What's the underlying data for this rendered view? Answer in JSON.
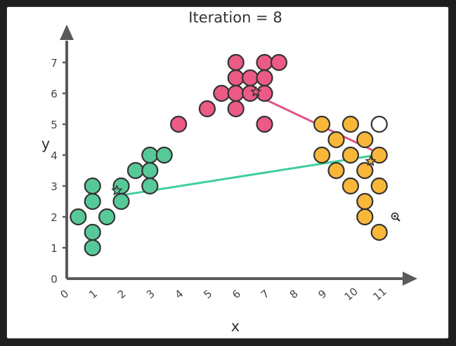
{
  "chart_data": {
    "type": "scatter",
    "title": "Iteration = 8",
    "xlabel": "x",
    "ylabel": "y",
    "xlim": [
      0,
      11
    ],
    "ylim": [
      0,
      7
    ],
    "x_ticks": [
      "0",
      "1",
      "2",
      "3",
      "4",
      "5",
      "6",
      "7",
      "8",
      "9",
      "10",
      "11"
    ],
    "y_ticks": [
      "0",
      "1",
      "2",
      "3",
      "4",
      "5",
      "6",
      "7"
    ],
    "grid": false,
    "colors": {
      "green": "#57c998",
      "pink": "#ec5a86",
      "orange": "#f9b73a",
      "outline": "#333333",
      "axis": "#5a5a5a",
      "green_line": "#3fcf98",
      "pink_line": "#e05183",
      "empty": "#ffffff"
    },
    "series": [
      {
        "color": "#57c998",
        "points": [
          [
            0.4,
            2
          ],
          [
            0.9,
            3
          ],
          [
            0.9,
            2.5
          ],
          [
            0.9,
            1.5
          ],
          [
            0.9,
            1
          ],
          [
            1.4,
            2
          ],
          [
            1.9,
            3
          ],
          [
            1.9,
            2.5
          ],
          [
            2.4,
            3.5
          ],
          [
            2.9,
            4
          ],
          [
            2.9,
            3.5
          ],
          [
            2.9,
            3
          ],
          [
            3.4,
            4
          ]
        ]
      },
      {
        "color": "#ec5a86",
        "points": [
          [
            3.9,
            5
          ],
          [
            4.9,
            5.5
          ],
          [
            5.4,
            6
          ],
          [
            5.9,
            7
          ],
          [
            5.9,
            6.5
          ],
          [
            5.9,
            6
          ],
          [
            5.9,
            5.5
          ],
          [
            6.4,
            6.5
          ],
          [
            6.4,
            6
          ],
          [
            6.9,
            7
          ],
          [
            6.9,
            6.5
          ],
          [
            6.9,
            6
          ],
          [
            6.9,
            5
          ],
          [
            7.4,
            7
          ]
        ]
      },
      {
        "color": "#f9b73a",
        "points": [
          [
            8.9,
            5
          ],
          [
            8.9,
            4
          ],
          [
            9.4,
            4.5
          ],
          [
            9.4,
            3.5
          ],
          [
            9.9,
            5
          ],
          [
            9.9,
            4
          ],
          [
            9.9,
            3
          ],
          [
            10.4,
            4.5
          ],
          [
            10.4,
            3.5
          ],
          [
            10.4,
            2.5
          ],
          [
            10.4,
            2
          ],
          [
            10.9,
            4
          ],
          [
            10.9,
            3
          ],
          [
            10.9,
            1.5
          ]
        ]
      },
      {
        "color": "#ffffff",
        "points": [
          [
            10.9,
            5
          ]
        ]
      }
    ],
    "centroid_lines": [
      {
        "color": "#3fcf98",
        "from": [
          1.9,
          2.7
        ],
        "to": [
          10.8,
          4.0
        ]
      },
      {
        "color": "#e05183",
        "from": [
          6.7,
          5.9
        ],
        "to": [
          10.8,
          4.1
        ]
      }
    ],
    "centroid_markers": [
      {
        "x": 1.75,
        "y": 2.85,
        "color": "#57c998"
      },
      {
        "x": 6.6,
        "y": 6.05,
        "color": "#ec5a86"
      },
      {
        "x": 10.6,
        "y": 3.8,
        "color": "#f9b73a"
      }
    ]
  },
  "cursor": {
    "icon": "zoom-cursor-icon"
  }
}
